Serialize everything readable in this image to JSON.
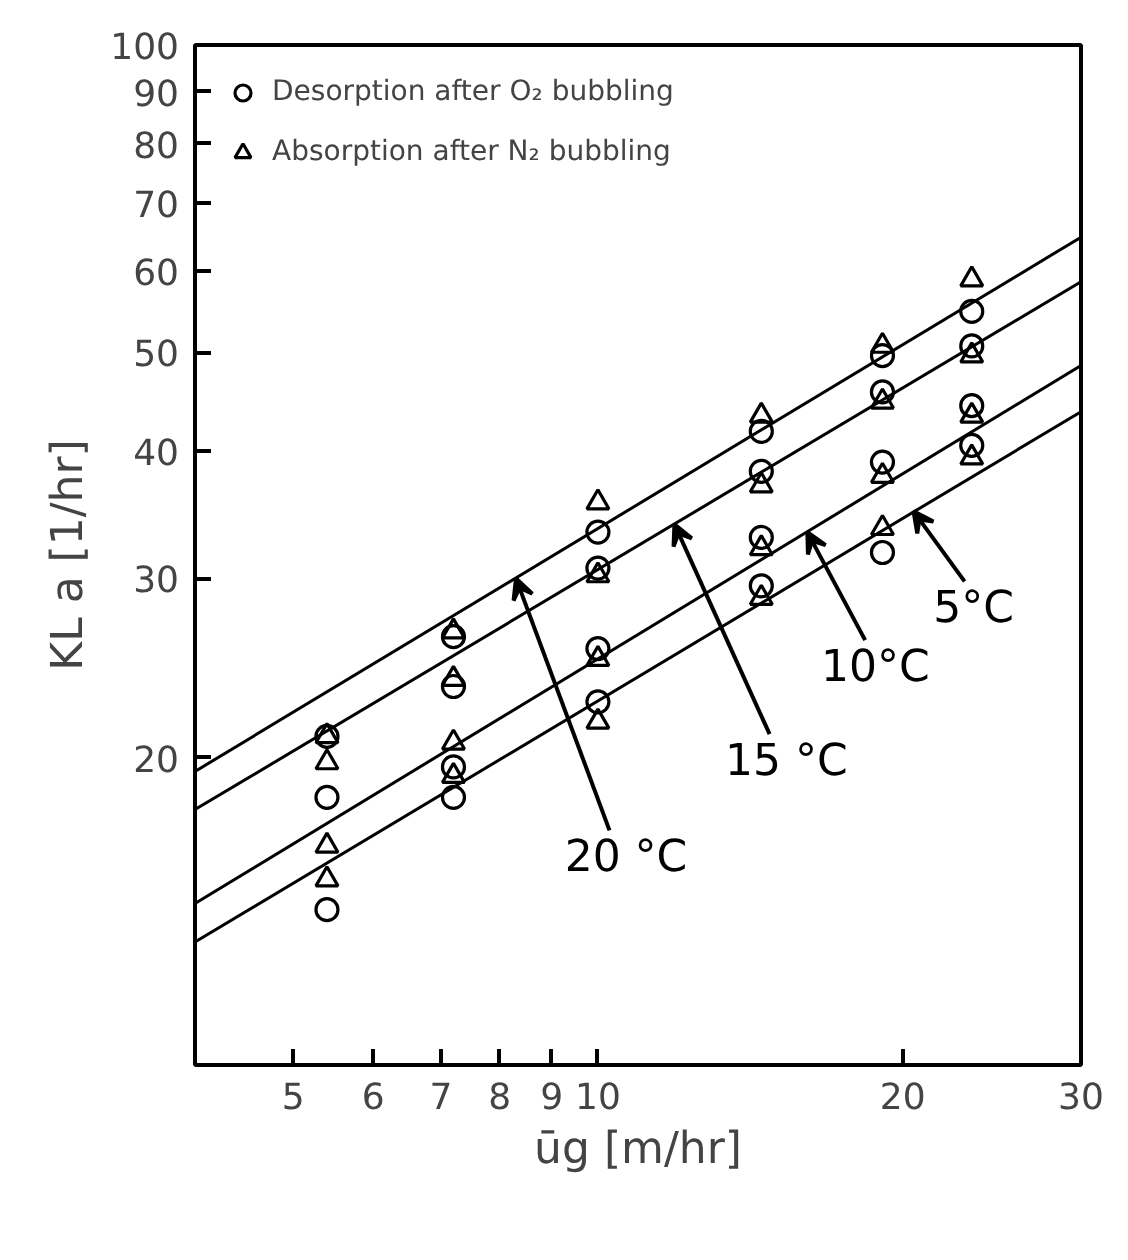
{
  "chart_data": {
    "type": "scatter",
    "xlabel": "ūg [m/hr]",
    "ylabel": "KL a [1/hr]",
    "log": "xy",
    "xlim": [
      4,
      30
    ],
    "ylim": [
      10,
      100
    ],
    "xticks": [
      5,
      6,
      7,
      8,
      9,
      10,
      20,
      30
    ],
    "yticks": [
      {
        "value": 10,
        "label": null
      },
      20,
      30,
      40,
      50,
      60,
      70,
      80,
      90,
      100
    ],
    "grid": false,
    "legend": "top left",
    "series": [
      {
        "name": "Desorption after O₂ bubbling",
        "marker": "circle",
        "color": "#000000",
        "x": [
          5.4,
          5.4,
          5.4,
          7.2,
          7.2,
          7.2,
          7.2,
          10,
          10,
          10,
          10,
          14.5,
          14.5,
          14.5,
          14.5,
          19.1,
          19.1,
          19.1,
          19.1,
          23.4,
          23.4,
          23.4,
          23.4
        ],
        "values": [
          21.0,
          18.3,
          14.2,
          26.3,
          23.5,
          19.6,
          18.3,
          33.3,
          30.7,
          25.6,
          22.7,
          41.8,
          38.2,
          32.9,
          29.5,
          49.6,
          45.7,
          39.0,
          31.8,
          54.8,
          50.7,
          44.3,
          40.5
        ]
      },
      {
        "name": "Absorption after N₂ bubbling",
        "marker": "triangle",
        "color": "#000000",
        "x": [
          5.4,
          5.4,
          5.4,
          5.4,
          7.2,
          7.2,
          7.2,
          7.2,
          10,
          10,
          10,
          10,
          14.5,
          14.5,
          14.5,
          14.5,
          19.1,
          19.1,
          19.1,
          19.1,
          23.4,
          23.4,
          23.4,
          23.4
        ],
        "values": [
          21.0,
          19.8,
          16.4,
          15.2,
          26.6,
          23.9,
          20.7,
          19.2,
          35.6,
          30.2,
          25.0,
          21.7,
          43.3,
          37.0,
          32.1,
          28.7,
          50.7,
          44.7,
          37.8,
          33.6,
          58.9,
          49.6,
          43.3,
          39.4
        ]
      },
      {
        "type": "line",
        "color": "#000000",
        "x": [
          4,
          30
        ],
        "values": [
          19.4,
          64.8
        ]
      },
      {
        "type": "line",
        "color": "#000000",
        "x": [
          4,
          30
        ],
        "values": [
          17.8,
          58.6
        ]
      },
      {
        "type": "line",
        "color": "#000000",
        "x": [
          4,
          30
        ],
        "values": [
          14.4,
          48.5
        ]
      },
      {
        "type": "line",
        "color": "#000000",
        "x": [
          4,
          30
        ],
        "values": [
          13.2,
          43.7
        ]
      }
    ],
    "annotations": [
      {
        "text": "20 °C",
        "x": 8.3,
        "y": 30.0
      },
      {
        "text": "15 °C",
        "x": 11.9,
        "y": 33.9
      },
      {
        "text": "10°C",
        "x": 16.1,
        "y": 33.3
      },
      {
        "text": "5°C",
        "x": 20.5,
        "y": 34.9
      }
    ]
  }
}
